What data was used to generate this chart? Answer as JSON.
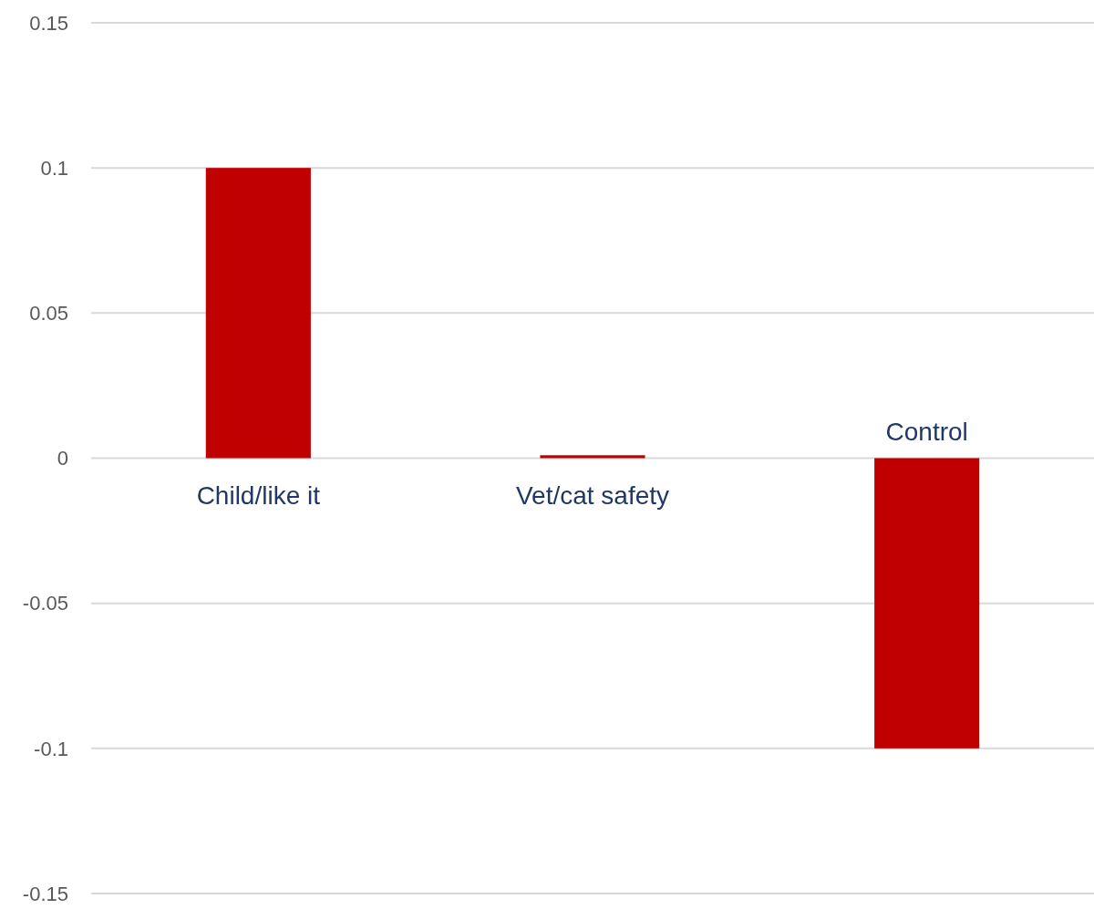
{
  "chart_data": {
    "type": "bar",
    "categories": [
      "Child/like it",
      "Vet/cat safety",
      "Control"
    ],
    "values": [
      0.1,
      0.001,
      -0.1
    ],
    "color": "#c00000",
    "ylim": [
      -0.15,
      0.15
    ],
    "yticks": [
      -0.15,
      -0.1,
      -0.05,
      0,
      0.05,
      0.1,
      0.15
    ],
    "grid": "y"
  }
}
